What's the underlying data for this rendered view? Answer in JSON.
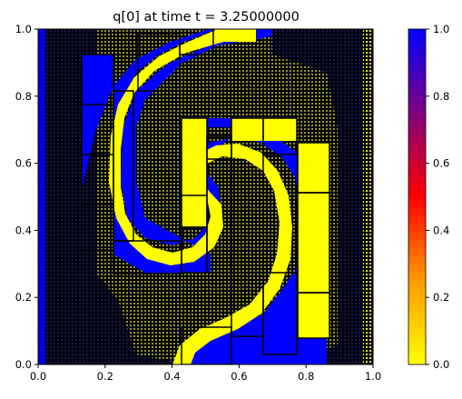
{
  "chart_data": {
    "type": "heatmap",
    "title": "q[0] at time t =     3.25000000",
    "xlabel": "",
    "ylabel": "",
    "xlim": [
      0.0,
      1.0
    ],
    "ylim": [
      0.0,
      1.0
    ],
    "x_ticks": [
      "0.0",
      "0.2",
      "0.4",
      "0.6",
      "0.8",
      "1.0"
    ],
    "y_ticks": [
      "0.0",
      "0.2",
      "0.4",
      "0.6",
      "0.8",
      "1.0"
    ],
    "colorbar": {
      "range": [
        0.0,
        1.0
      ],
      "ticks": [
        "0.0",
        "0.2",
        "0.4",
        "0.6",
        "0.8",
        "1.0"
      ],
      "colors": [
        "#ffff00",
        "#ff8c00",
        "#ff0000",
        "#800080",
        "#0000ff"
      ]
    },
    "field_description": "q[0] rotated step field shown on adaptively refined mesh (AMR patches outlined in black); value 1 inside a spiral arm, 0 in background",
    "background_color": "#0a0a24",
    "high_color": "#0000ff",
    "low_color": "#ffff00"
  }
}
